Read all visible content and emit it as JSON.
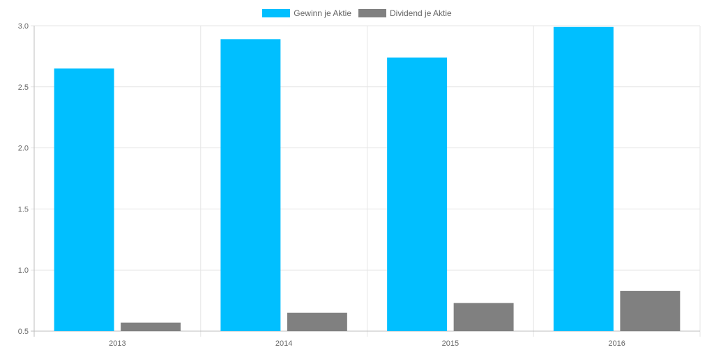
{
  "chart_data": {
    "type": "bar",
    "categories": [
      "2013",
      "2014",
      "2015",
      "2016"
    ],
    "series": [
      {
        "name": "Gewinn je Aktie",
        "color": "#00bfff",
        "values": [
          2.65,
          2.89,
          2.74,
          2.99
        ]
      },
      {
        "name": "Dividend je Aktie",
        "color": "#808080",
        "values": [
          0.57,
          0.65,
          0.73,
          0.83
        ]
      }
    ],
    "y_ticks": [
      "0.5",
      "1.0",
      "1.5",
      "2.0",
      "2.5",
      "3.0"
    ],
    "ylim": [
      0.5,
      3.0
    ],
    "grid": true,
    "legend_position": "top-center",
    "title": "",
    "xlabel": "",
    "ylabel": ""
  }
}
